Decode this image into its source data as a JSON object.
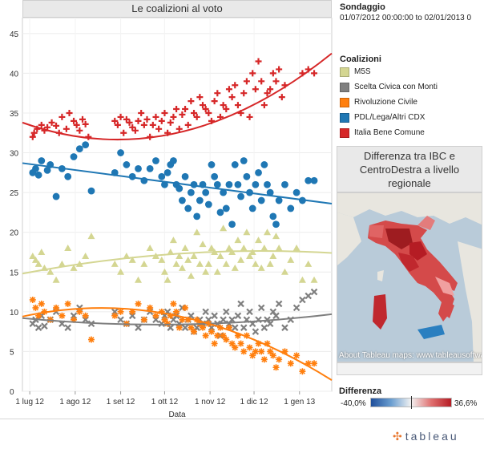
{
  "chart_data": {
    "type": "scatter",
    "title": "Le coalizioni al voto",
    "xlabel": "Data",
    "ylabel": "",
    "ylim": [
      0,
      47
    ],
    "yticks": [
      "0",
      "5",
      "10",
      "15",
      "20",
      "25",
      "30",
      "35",
      "40",
      "45"
    ],
    "xticks": [
      "1 lug 12",
      "1 ago 12",
      "1 set 12",
      "1 ott 12",
      "1 nov 12",
      "1 dic 12",
      "1 gen 13"
    ],
    "xrange_days": [
      -5,
      206
    ],
    "grid": true,
    "series": [
      {
        "name": "Italia Bene Comune",
        "color": "#d62728",
        "marker": "plus",
        "x": [
          2,
          3,
          5,
          8,
          10,
          12,
          15,
          18,
          20,
          22,
          25,
          27,
          30,
          32,
          34,
          36,
          38,
          40,
          58,
          60,
          62,
          64,
          66,
          68,
          70,
          72,
          74,
          76,
          78,
          80,
          82,
          84,
          86,
          88,
          90,
          92,
          94,
          96,
          98,
          100,
          102,
          104,
          106,
          108,
          110,
          112,
          114,
          116,
          118,
          120,
          122,
          124,
          126,
          128,
          130,
          132,
          134,
          136,
          138,
          140,
          142,
          144,
          146,
          148,
          150,
          152,
          154,
          156,
          158,
          160,
          162,
          164,
          166,
          168,
          170,
          172,
          174,
          186,
          190,
          194
        ],
        "y": [
          32,
          32.5,
          33,
          33.5,
          32.8,
          33.2,
          33.8,
          33.4,
          32.5,
          34.5,
          33,
          35,
          34,
          33.5,
          32.8,
          34.2,
          33.6,
          32,
          34,
          33.5,
          34.5,
          32.5,
          34.2,
          33.8,
          33.2,
          32.8,
          34,
          35,
          33.5,
          34.2,
          32,
          33.5,
          34.5,
          33,
          34,
          35,
          32.5,
          33.8,
          34.5,
          35.5,
          33,
          34.8,
          35.5,
          33.5,
          36.5,
          35,
          34.5,
          37,
          36,
          35.5,
          35,
          34,
          36.5,
          37.5,
          34.5,
          36,
          35.5,
          38,
          37,
          38.5,
          36,
          35,
          37.5,
          39,
          34.5,
          40,
          38,
          41.5,
          39,
          36,
          37.5,
          38,
          40,
          39,
          40.5,
          37,
          38.5,
          40,
          40.5,
          40
        ]
      },
      {
        "name": "PDL/Lega/Altri CDX",
        "color": "#1f77b4",
        "marker": "circle",
        "x": [
          2,
          4,
          6,
          8,
          12,
          14,
          18,
          22,
          26,
          30,
          34,
          38,
          42,
          58,
          62,
          66,
          70,
          74,
          78,
          82,
          86,
          90,
          92,
          94,
          96,
          98,
          100,
          102,
          104,
          106,
          108,
          110,
          112,
          114,
          116,
          118,
          120,
          122,
          124,
          126,
          128,
          130,
          132,
          134,
          136,
          138,
          140,
          142,
          144,
          146,
          148,
          150,
          152,
          154,
          156,
          158,
          160,
          162,
          164,
          166,
          168,
          170,
          174,
          178,
          182,
          186,
          190,
          194
        ],
        "y": [
          27.5,
          28,
          27.2,
          29,
          27.8,
          28.5,
          24.5,
          28,
          27,
          29.5,
          30.5,
          31,
          25.2,
          27.5,
          30,
          28.5,
          27,
          28,
          26.5,
          28,
          29,
          27,
          26,
          27.5,
          28.5,
          29,
          26,
          25.5,
          24,
          27,
          23,
          25,
          26,
          22,
          24,
          26,
          25,
          23.5,
          28.5,
          27,
          26,
          22.5,
          25,
          23,
          26,
          21,
          28.5,
          26,
          24.5,
          29,
          27,
          25,
          23,
          26,
          27.5,
          24,
          28.5,
          26,
          25,
          22,
          21,
          24,
          26,
          23,
          25,
          24,
          26.5,
          26.5
        ]
      },
      {
        "name": "M5S",
        "color": "#d4d692",
        "marker": "triangle",
        "x": [
          2,
          4,
          6,
          8,
          10,
          14,
          18,
          22,
          26,
          30,
          34,
          38,
          42,
          58,
          62,
          66,
          70,
          74,
          78,
          82,
          86,
          90,
          92,
          94,
          96,
          98,
          100,
          102,
          104,
          106,
          108,
          110,
          112,
          114,
          116,
          118,
          120,
          122,
          124,
          126,
          128,
          130,
          132,
          134,
          136,
          138,
          140,
          142,
          144,
          146,
          148,
          150,
          152,
          154,
          156,
          158,
          160,
          162,
          164,
          166,
          168,
          170,
          174,
          178,
          182,
          186,
          190,
          194
        ],
        "y": [
          17,
          16.5,
          16,
          17.5,
          15.5,
          15,
          14,
          16,
          18,
          15.5,
          16,
          17,
          19.5,
          16,
          15,
          17,
          16.5,
          14,
          16,
          18,
          17,
          16.5,
          15,
          14,
          17.5,
          19,
          16,
          17,
          15.5,
          18,
          16.5,
          14.5,
          17,
          20,
          16,
          18.5,
          15,
          16,
          18,
          17.5,
          15,
          17,
          20.5,
          16,
          18,
          17.5,
          15.5,
          19,
          16.5,
          18,
          20,
          17,
          17.5,
          16,
          19,
          15.5,
          18,
          20,
          16,
          17,
          19.5,
          18,
          15,
          16.5,
          18,
          14,
          16,
          14
        ]
      },
      {
        "name": "Scelta Civica con Monti",
        "color": "#7f7f7f",
        "marker": "cross",
        "x": [
          2,
          4,
          6,
          8,
          10,
          14,
          18,
          22,
          26,
          30,
          34,
          38,
          42,
          58,
          62,
          66,
          70,
          74,
          78,
          82,
          86,
          90,
          92,
          94,
          96,
          98,
          100,
          102,
          104,
          106,
          108,
          110,
          112,
          114,
          116,
          118,
          120,
          122,
          124,
          126,
          128,
          130,
          132,
          134,
          136,
          138,
          140,
          142,
          144,
          146,
          148,
          150,
          152,
          154,
          156,
          158,
          160,
          162,
          164,
          166,
          168,
          170,
          174,
          178,
          182,
          186,
          190,
          194
        ],
        "y": [
          8.5,
          9,
          8,
          9.5,
          8.2,
          9,
          10,
          8.5,
          8,
          9.5,
          10.5,
          9,
          8.5,
          10,
          9,
          8.5,
          9.5,
          8,
          9,
          10,
          9,
          8.5,
          9.5,
          10,
          8,
          9,
          9.5,
          8.5,
          10.5,
          8,
          9,
          9.5,
          7.5,
          8,
          9,
          8.5,
          10,
          9,
          8,
          9.5,
          8.5,
          7,
          9,
          10,
          8.5,
          9,
          8,
          9.5,
          11,
          8,
          9,
          10,
          8.5,
          7.5,
          9,
          10.5,
          8,
          9,
          8.5,
          10,
          9.5,
          11,
          8,
          9,
          10.5,
          11.5,
          12,
          12.5
        ]
      },
      {
        "name": "Rivoluzione Civile",
        "color": "#ff7f0e",
        "marker": "asterisk",
        "x": [
          2,
          4,
          6,
          8,
          10,
          14,
          18,
          22,
          26,
          30,
          34,
          38,
          42,
          58,
          62,
          66,
          70,
          74,
          78,
          82,
          86,
          90,
          92,
          94,
          96,
          98,
          100,
          102,
          104,
          106,
          108,
          110,
          112,
          114,
          116,
          118,
          120,
          122,
          124,
          126,
          128,
          130,
          132,
          134,
          136,
          138,
          140,
          142,
          144,
          146,
          148,
          150,
          152,
          154,
          156,
          158,
          160,
          162,
          164,
          166,
          168,
          170,
          174,
          178,
          182,
          186,
          190,
          194
        ],
        "y": [
          11.5,
          10.5,
          9.5,
          11,
          10,
          9,
          10.5,
          9.5,
          11,
          9,
          10,
          9.5,
          6.5,
          9.5,
          10,
          8.5,
          10,
          11,
          9,
          10.5,
          9.5,
          10,
          9,
          8.5,
          9.5,
          11,
          10,
          8,
          9,
          10.5,
          9,
          8,
          7.5,
          9,
          8.5,
          8,
          7,
          8.5,
          7.5,
          6,
          7,
          8,
          7,
          6.5,
          8,
          6,
          5.5,
          7,
          6,
          5,
          7,
          5.5,
          4.5,
          5,
          6,
          5,
          4,
          6,
          5,
          4.5,
          3,
          4,
          5,
          3.5,
          4.5,
          2.5,
          3.5,
          3.5
        ]
      }
    ],
    "trend_lines": [
      {
        "name": "Italia Bene Comune",
        "color": "#d62728",
        "y_start": 33.8,
        "y_min": 32.5,
        "y_end": 42.5
      },
      {
        "name": "PDL/Lega/Altri CDX",
        "color": "#1f77b4",
        "y_start": 28.7,
        "y_end": 23.6
      },
      {
        "name": "M5S",
        "color": "#d4d692",
        "y_start": 14.8,
        "y_mid": 17.3,
        "y_end": 17.4
      },
      {
        "name": "Scelta Civica con Monti",
        "color": "#7f7f7f",
        "y_start": 9.2,
        "y_mid": 8.4,
        "y_end": 9.7
      },
      {
        "name": "Rivoluzione Civile",
        "color": "#ff7f0e",
        "y_start": 9.4,
        "y_mid": 9.5,
        "y_end": 1.4
      }
    ]
  },
  "sondaggio": {
    "title": "Sondaggio",
    "range": "01/07/2012 00:00:00 to 02/01/2013 0"
  },
  "legend": {
    "title": "Coalizioni",
    "items": [
      {
        "label": "M5S",
        "color": "#d4d692"
      },
      {
        "label": "Scelta Civica con Monti",
        "color": "#7f7f7f"
      },
      {
        "label": "Rivoluzione Civile",
        "color": "#ff7f0e"
      },
      {
        "label": "PDL/Lega/Altri CDX",
        "color": "#1f77b4"
      },
      {
        "label": "Italia Bene Comune",
        "color": "#d62728"
      }
    ]
  },
  "map": {
    "title": "Differenza tra IBC e CentroDestra a livello regionale",
    "credit": "About Tableau maps: www.tableausoftware.com/mapdata"
  },
  "differenza": {
    "title": "Differenza",
    "min_label": "-40,0%",
    "max_label": "36,6%"
  },
  "footer": {
    "logo_text": "tableau"
  }
}
